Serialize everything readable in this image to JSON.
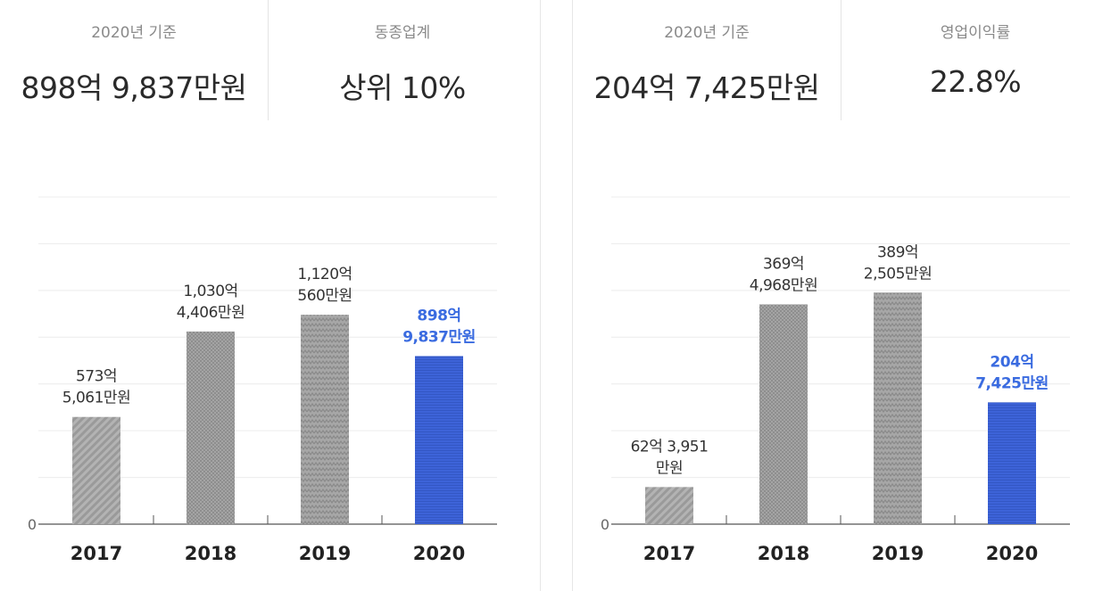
{
  "colors": {
    "bar_gray": "#999999",
    "bar_highlight": "#3d63d8",
    "highlight_text": "#3a6be0",
    "grid": "#ececec",
    "axis": "#555555"
  },
  "panels": [
    {
      "stats": [
        {
          "label": "2020년 기준",
          "value": "898억 9,837만원"
        },
        {
          "label": "동종업계",
          "value": "상위  10%"
        }
      ]
    },
    {
      "stats": [
        {
          "label": "2020년 기준",
          "value": "204억 7,425만원"
        },
        {
          "label": "영업이익률",
          "value": "22.8%"
        }
      ]
    }
  ],
  "chart_data": [
    {
      "type": "bar",
      "categories": [
        "2017",
        "2018",
        "2019",
        "2020"
      ],
      "values": [
        573.5061,
        1030.4406,
        1120.056,
        898.9837
      ],
      "value_unit": "억원",
      "data_labels": [
        [
          "573억",
          "5,061만원"
        ],
        [
          "1,030억",
          "4,406만원"
        ],
        [
          "1,120억",
          "560만원"
        ],
        [
          "898억",
          "9,837만원"
        ]
      ],
      "highlight_index": 3,
      "bar_patterns": [
        "diagonal",
        "dots",
        "zigzag",
        "horizontal-lines"
      ],
      "zero_label": "0",
      "ylim": [
        0,
        1750
      ],
      "grid": true
    },
    {
      "type": "bar",
      "categories": [
        "2017",
        "2018",
        "2019",
        "2020"
      ],
      "values": [
        62.3951,
        369.4968,
        389.2505,
        204.7425
      ],
      "value_unit": "억원",
      "data_labels": [
        [
          "62억 3,951",
          "만원"
        ],
        [
          "369억",
          "4,968만원"
        ],
        [
          "389억",
          "2,505만원"
        ],
        [
          "204억",
          "7,425만원"
        ]
      ],
      "highlight_index": 3,
      "bar_patterns": [
        "diagonal",
        "dots",
        "zigzag",
        "horizontal-lines"
      ],
      "zero_label": "0",
      "ylim": [
        0,
        550
      ],
      "grid": true
    }
  ]
}
